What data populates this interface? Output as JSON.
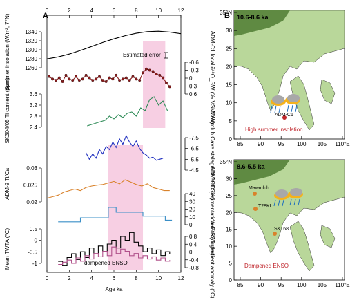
{
  "panel_a": {
    "letter": "A",
    "x_label": "Age ka",
    "x_ticks": [
      "0",
      "2",
      "4",
      "6",
      "8",
      "10",
      "12"
    ],
    "annotations": {
      "estimated_error": "Estimated error",
      "dampened_enso": "dampened ENSO"
    },
    "y_labels": {
      "insolation": "Summer insolation (W/m², 7°N)",
      "ti": "SK304/05 Ti content (ppm)",
      "adm9": "ADM-9 Ti/Ca",
      "tw": "Mean TWTA (°C)",
      "d18o_sw": "ADM-C1 local δ¹⁸O_SW (‰ VSMOW)",
      "mawmluh": "Mawmluh Cave stalagmite δ¹⁸O (‰)",
      "sed": "ADM-C1 Sedimentation rate (cm/ka)",
      "sst": "W-E SST gradient anomaly (°C)"
    },
    "left_ticks": {
      "insolation": [
        "1340",
        "1320",
        "1300",
        "1280",
        "1260"
      ],
      "ti": [
        "3.6",
        "3.2",
        "2.8",
        "2.4"
      ],
      "adm9": [
        "0.03",
        "0.025",
        "0.02"
      ],
      "tw": [
        "0.5",
        "0",
        "-0.5",
        "-1"
      ]
    },
    "right_ticks": {
      "d18o_sw": [
        "-0.6",
        "-0.3",
        "0",
        "0.3",
        "0.6"
      ],
      "mawmluh": [
        "-7.5",
        "-6.5",
        "-5.5",
        "-4.5"
      ],
      "sed": [
        "40",
        "30",
        "20",
        "10",
        "0"
      ],
      "sst": [
        "0.8",
        "0.4",
        "0",
        "-0.4",
        "-0.8"
      ]
    }
  },
  "panel_b": {
    "letter": "B",
    "map1": {
      "title": "10.6-8.6 ka",
      "site": "ADM-C1",
      "caption": "High summer insolation",
      "lat_ticks": [
        "35°N",
        "30",
        "25",
        "20",
        "15",
        "10",
        "5",
        "0"
      ],
      "lon_ticks": [
        "85",
        "90",
        "95",
        "100",
        "105",
        "110°E"
      ]
    },
    "map2": {
      "title": "8.6-5.5 ka",
      "sites": [
        "Mawmluh",
        "T28KL",
        "SK168"
      ],
      "caption": "Dampened ENSO",
      "lat_ticks": [
        "35°N",
        "30",
        "25",
        "20",
        "15",
        "10",
        "5",
        "0"
      ],
      "lon_ticks": [
        "85",
        "90",
        "95",
        "100",
        "105",
        "110°E"
      ]
    },
    "colors": {
      "sea": "#ffffff",
      "land": "#b9d79a",
      "highland": "#5f8a42",
      "caption": "#c0262c"
    }
  },
  "chart_data": {
    "type": "line",
    "x_label": "Age ka",
    "x_range": [
      0,
      12
    ],
    "shaded_intervals": [
      {
        "x": [
          8.6,
          10.6
        ],
        "color": "#f7cfe3"
      },
      {
        "x": [
          5.5,
          8.6
        ],
        "color": "#f7cfe3"
      }
    ],
    "series": [
      {
        "name": "Summer insolation",
        "color": "#000000",
        "ylim": [
          1250,
          1345
        ],
        "x": [
          0,
          1,
          2,
          3,
          4,
          5,
          6,
          7,
          8,
          9,
          10,
          11,
          12
        ],
        "y": [
          1267,
          1272,
          1279,
          1288,
          1298,
          1308,
          1317,
          1325,
          1331,
          1335,
          1336,
          1334,
          1330
        ]
      },
      {
        "name": "ADM-C1 local d18O_sw",
        "color": "#8b1a1a",
        "ylim": [
          -0.75,
          0.75
        ],
        "reversed": true,
        "x": [
          0.2,
          0.5,
          0.8,
          1.1,
          1.4,
          1.7,
          2.0,
          2.3,
          2.6,
          2.9,
          3.2,
          3.5,
          3.8,
          4.1,
          4.4,
          4.7,
          5.0,
          5.3,
          5.6,
          5.9,
          6.2,
          6.5,
          6.8,
          7.1,
          7.4,
          7.7,
          8.0,
          8.3,
          8.6,
          8.9,
          9.2,
          9.5,
          9.8,
          10.1,
          10.4,
          10.7,
          11.0
        ],
        "y": [
          -0.05,
          0.05,
          0.1,
          0.0,
          0.15,
          -0.1,
          0.05,
          0.1,
          -0.05,
          0.1,
          0.05,
          -0.1,
          0.0,
          0.1,
          0.05,
          -0.05,
          0.1,
          0.15,
          0.0,
          0.05,
          -0.1,
          0.1,
          0.05,
          0.0,
          0.1,
          -0.05,
          0.05,
          0.1,
          -0.2,
          -0.35,
          -0.3,
          -0.25,
          -0.15,
          -0.1,
          0.0,
          0.2,
          0.35
        ]
      },
      {
        "name": "SK304/05 Ti content",
        "color": "#2e8b57",
        "ylim": [
          2.35,
          3.8
        ],
        "x": [
          3.6,
          4.0,
          4.4,
          4.8,
          5.2,
          5.6,
          6.0,
          6.4,
          6.8,
          7.2,
          7.6,
          8.0,
          8.4,
          8.8,
          9.2,
          9.6,
          10.0,
          10.4,
          10.8
        ],
        "y": [
          2.55,
          2.6,
          2.65,
          2.7,
          2.75,
          2.9,
          2.8,
          2.95,
          2.85,
          3.0,
          3.05,
          2.9,
          3.2,
          3.1,
          3.5,
          3.6,
          3.3,
          3.45,
          3.1
        ]
      },
      {
        "name": "Mawmluh Cave stalagmite d18O",
        "color": "#1f2fbf",
        "ylim": [
          -8.0,
          -4.0
        ],
        "reversed": true,
        "x": [
          3.5,
          3.8,
          4.1,
          4.4,
          4.7,
          5.0,
          5.3,
          5.6,
          5.9,
          6.2,
          6.5,
          6.8,
          7.1,
          7.4,
          7.7,
          8.0,
          8.3,
          8.6,
          8.9,
          9.2,
          9.5,
          9.8,
          10.1,
          10.4
        ],
        "y": [
          -6.0,
          -5.4,
          -5.9,
          -5.5,
          -6.3,
          -5.9,
          -6.6,
          -6.3,
          -7.0,
          -6.5,
          -7.3,
          -6.8,
          -7.6,
          -7.0,
          -6.6,
          -7.1,
          -6.4,
          -6.0,
          -5.8,
          -5.5,
          -5.6,
          -5.3,
          -5.4,
          -5.5
        ]
      },
      {
        "name": "ADM-9 Ti/Ca",
        "color": "#d9822b",
        "ylim": [
          0.0185,
          0.0325
        ],
        "x": [
          0,
          0.5,
          1,
          1.5,
          2,
          2.5,
          3,
          3.5,
          4,
          4.5,
          5,
          5.5,
          6,
          6.5,
          7,
          7.5,
          8,
          8.5,
          9,
          9.5,
          10,
          10.5,
          11
        ],
        "y": [
          0.0215,
          0.022,
          0.0225,
          0.0235,
          0.024,
          0.0245,
          0.024,
          0.025,
          0.0255,
          0.0258,
          0.026,
          0.0265,
          0.027,
          0.0262,
          0.0275,
          0.0268,
          0.026,
          0.0255,
          0.0262,
          0.025,
          0.0245,
          0.024,
          0.024
        ]
      },
      {
        "name": "ADM-C1 Sedimentation rate",
        "color": "#3a8fc7",
        "ylim": [
          0,
          45
        ],
        "step": true,
        "x": [
          1.0,
          3.0,
          5.5,
          6.2,
          8.6,
          10.6,
          11.2
        ],
        "y": [
          8,
          13,
          26,
          20,
          15,
          10,
          10
        ]
      },
      {
        "name": "Mean TWTA",
        "color": "#000000",
        "ylim": [
          -1.5,
          0.8
        ],
        "step": true,
        "x": [
          1.0,
          1.4,
          1.8,
          2.2,
          2.6,
          3.0,
          3.4,
          3.8,
          4.2,
          4.6,
          5.0,
          5.4,
          5.8,
          6.2,
          6.6,
          7.0,
          7.4,
          7.8,
          8.2,
          8.6,
          9.0,
          9.4,
          9.8,
          10.2,
          10.6,
          11.0
        ],
        "y": [
          -1.0,
          -1.2,
          -0.8,
          -0.6,
          -0.9,
          -0.5,
          -0.8,
          -0.3,
          -0.6,
          -0.2,
          -0.5,
          -0.1,
          0.1,
          -0.3,
          0.3,
          0.1,
          0.5,
          0.0,
          -0.2,
          -0.5,
          -0.3,
          -0.6,
          -0.4,
          -0.7,
          -0.5,
          -0.6
        ]
      },
      {
        "name": "W-E SST gradient anomaly",
        "color": "#b0508a",
        "ylim": [
          -0.9,
          0.9
        ],
        "step": true,
        "x": [
          1.0,
          1.4,
          1.8,
          2.2,
          2.6,
          3.0,
          3.4,
          3.8,
          4.2,
          4.6,
          5.0,
          5.4,
          5.8,
          6.2,
          6.6,
          7.0,
          7.4,
          7.8,
          8.2,
          8.6,
          9.0,
          9.4,
          9.8,
          10.2,
          10.6,
          11.0
        ],
        "y": [
          -0.6,
          -0.5,
          -0.4,
          -0.55,
          -0.3,
          -0.45,
          -0.2,
          -0.35,
          -0.1,
          -0.25,
          0.0,
          -0.2,
          0.2,
          -0.1,
          0.1,
          0.0,
          -0.2,
          -0.1,
          -0.3,
          -0.2,
          -0.35,
          -0.25,
          -0.4,
          -0.3,
          -0.45,
          -0.4
        ]
      }
    ]
  }
}
